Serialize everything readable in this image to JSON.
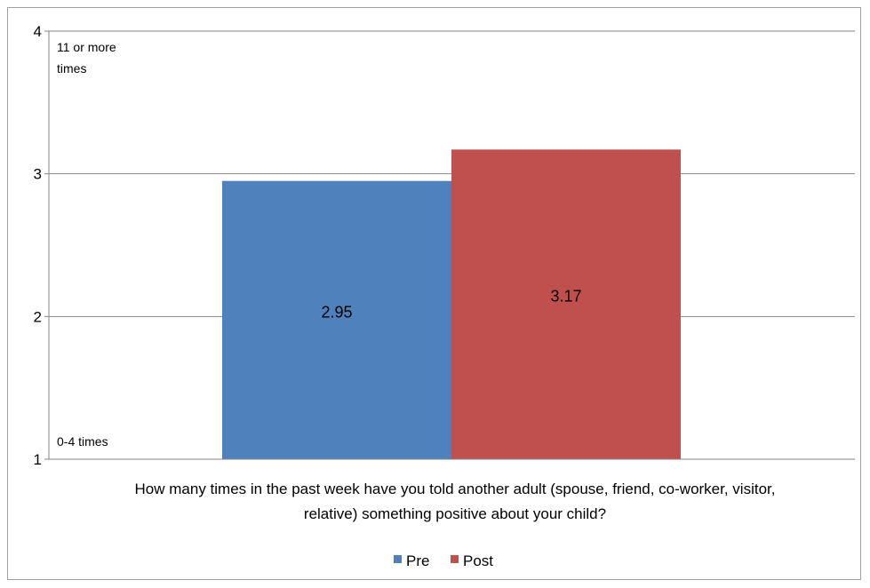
{
  "chart_data": {
    "type": "bar",
    "categories": [
      "How many times in the past week have you told another adult (spouse, friend, co-worker, visitor, relative) something positive about your child?"
    ],
    "category_lines": [
      "How many times in the past week have you told another adult (spouse, friend, co-worker, visitor,",
      "relative) something positive about your child?"
    ],
    "series": [
      {
        "name": "Pre",
        "values": [
          2.95
        ],
        "color": "#4f81bd"
      },
      {
        "name": "Post",
        "values": [
          3.17
        ],
        "color": "#c0504d"
      }
    ],
    "data_labels": [
      "2.95",
      "3.17"
    ],
    "ylim": [
      1,
      4
    ],
    "yticks": [
      1,
      2,
      3,
      4
    ],
    "ytick_labels": [
      "1",
      "2",
      "3",
      "4"
    ],
    "annotations": {
      "top_line1": "11 or more",
      "top_line2": "times",
      "bottom": "0-4 times"
    },
    "grid": true,
    "legend_position": "bottom"
  }
}
